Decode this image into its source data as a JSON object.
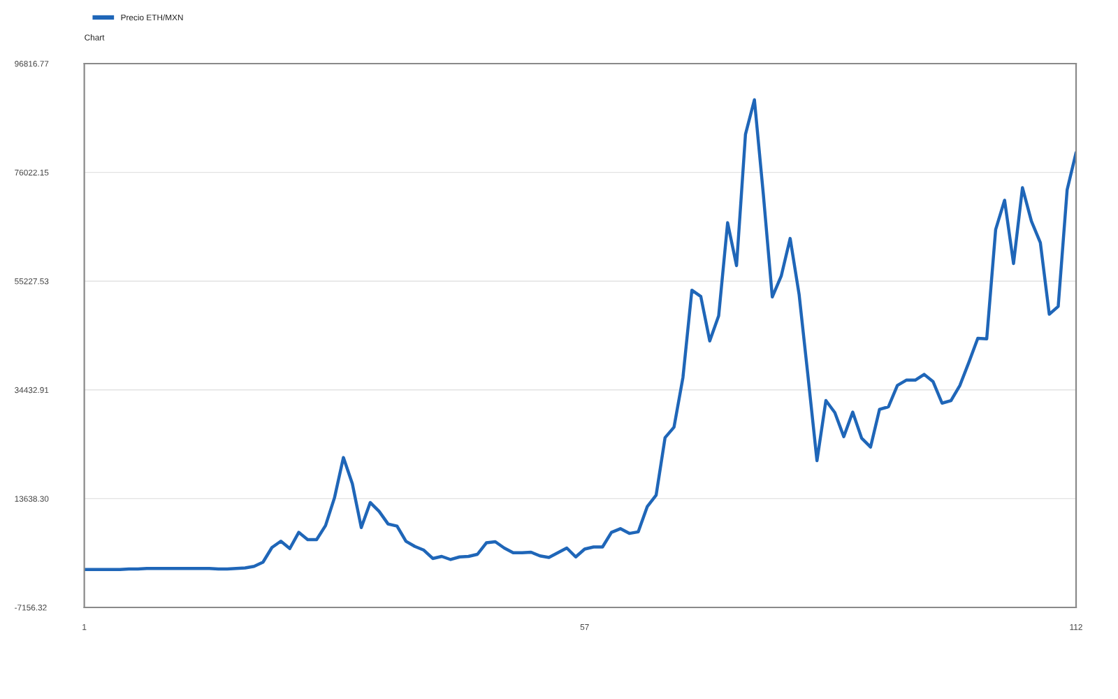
{
  "chart_data": {
    "type": "line",
    "title": "Chart",
    "x": [
      1,
      2,
      3,
      4,
      5,
      6,
      7,
      8,
      9,
      10,
      11,
      12,
      13,
      14,
      15,
      16,
      17,
      18,
      19,
      20,
      21,
      22,
      23,
      24,
      25,
      26,
      27,
      28,
      29,
      30,
      31,
      32,
      33,
      34,
      35,
      36,
      37,
      38,
      39,
      40,
      41,
      42,
      43,
      44,
      45,
      46,
      47,
      48,
      49,
      50,
      51,
      52,
      53,
      54,
      55,
      56,
      57,
      58,
      59,
      60,
      61,
      62,
      63,
      64,
      65,
      66,
      67,
      68,
      69,
      70,
      71,
      72,
      73,
      74,
      75,
      76,
      77,
      78,
      79,
      80,
      81,
      82,
      83,
      84,
      85,
      86,
      87,
      88,
      89,
      90,
      91,
      92,
      93,
      94,
      95,
      96,
      97,
      98,
      99,
      100,
      101,
      102,
      103,
      104,
      105,
      106,
      107,
      108,
      109,
      110,
      111,
      112
    ],
    "series": [
      {
        "name": "Precio ETH/MXN",
        "color": "#1f66b8",
        "values": [
          100,
          100,
          100,
          100,
          100,
          200,
          200,
          300,
          300,
          300,
          300,
          300,
          300,
          300,
          300,
          200,
          200,
          300,
          400,
          700,
          1500,
          4300,
          5500,
          4100,
          7200,
          5800,
          5800,
          8500,
          13800,
          21500,
          16500,
          8100,
          12900,
          11200,
          8800,
          8400,
          5500,
          4500,
          3800,
          2200,
          2600,
          2000,
          2500,
          2600,
          3000,
          5200,
          5400,
          4200,
          3300,
          3300,
          3400,
          2700,
          2400,
          3300,
          4200,
          2500,
          4000,
          4400,
          4400,
          7200,
          7900,
          7000,
          7300,
          12100,
          14300,
          25300,
          27300,
          36800,
          53500,
          52300,
          43800,
          48600,
          66400,
          58200,
          83300,
          89900,
          71800,
          52200,
          56200,
          63400,
          52700,
          37000,
          20900,
          32400,
          30100,
          25500,
          30200,
          25200,
          23500,
          30700,
          31200,
          35300,
          36300,
          36300,
          37400,
          36000,
          31900,
          32400,
          35300,
          39700,
          44300,
          44200,
          65100,
          70700,
          58600,
          73100,
          66700,
          62600,
          48900,
          50400,
          72700,
          79800
        ]
      }
    ],
    "xlim": [
      1,
      112
    ],
    "xticks": [
      1,
      57,
      112
    ],
    "ylim": [
      -7156.32,
      96816.77
    ],
    "yticks": [
      -7156.32,
      {
        "value": 13638.3,
        "label": "13638.30"
      },
      34432.91,
      55227.53,
      76022.15,
      96816.77
    ],
    "grid": "y",
    "legend": "top left",
    "marker": "none",
    "line_style": "solid"
  }
}
